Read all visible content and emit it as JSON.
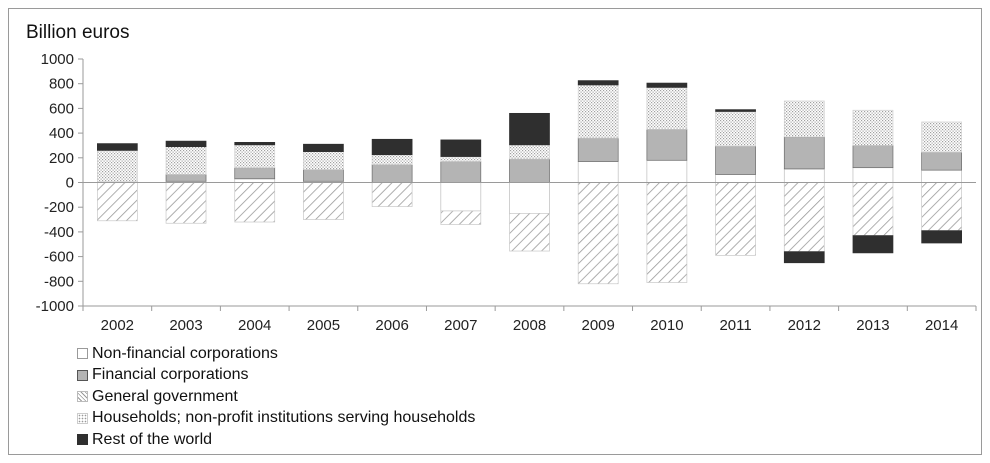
{
  "chart_data": {
    "type": "bar",
    "stacked": true,
    "title": "",
    "ylabel": "Billion euros",
    "xlabel": "",
    "ylim": [
      -1000,
      1000
    ],
    "yticks": [
      1000,
      800,
      600,
      400,
      200,
      0,
      -200,
      -400,
      -600,
      -800,
      -1000
    ],
    "grid": false,
    "legend_position": "bottom-left",
    "categories": [
      "2002",
      "2003",
      "2004",
      "2005",
      "2006",
      "2007",
      "2008",
      "2009",
      "2010",
      "2011",
      "2012",
      "2013",
      "2014"
    ],
    "series": [
      {
        "name": "Non-financial corporations",
        "key": "nfc",
        "fill": "white",
        "values": [
          10,
          10,
          30,
          10,
          0,
          -230,
          -250,
          170,
          180,
          65,
          110,
          120,
          100
        ]
      },
      {
        "name": "Financial corporations",
        "key": "fc",
        "fill": "grey",
        "values": [
          0,
          55,
          90,
          95,
          145,
          170,
          190,
          190,
          250,
          230,
          260,
          180,
          145
        ]
      },
      {
        "name": "General government",
        "key": "gg",
        "fill": "diagonal-hatch",
        "values": [
          -310,
          -330,
          -320,
          -300,
          -195,
          -110,
          -305,
          -820,
          -810,
          -590,
          -560,
          -430,
          -390
        ]
      },
      {
        "name": "Households; non-profit institutions serving households",
        "key": "hh",
        "fill": "dotted",
        "values": [
          250,
          225,
          185,
          145,
          80,
          40,
          115,
          430,
          340,
          280,
          290,
          285,
          245
        ]
      },
      {
        "name": "Rest of the world",
        "key": "row",
        "fill": "black",
        "values": [
          55,
          45,
          20,
          60,
          125,
          135,
          255,
          35,
          35,
          15,
          -90,
          -140,
          -100
        ]
      }
    ],
    "colors": {
      "grey": "#b4b4b4",
      "black": "#2f2f2f",
      "axis": "#9a9a9a",
      "hatch": "#9a9a9a",
      "dots": "#a0a0a0"
    }
  }
}
